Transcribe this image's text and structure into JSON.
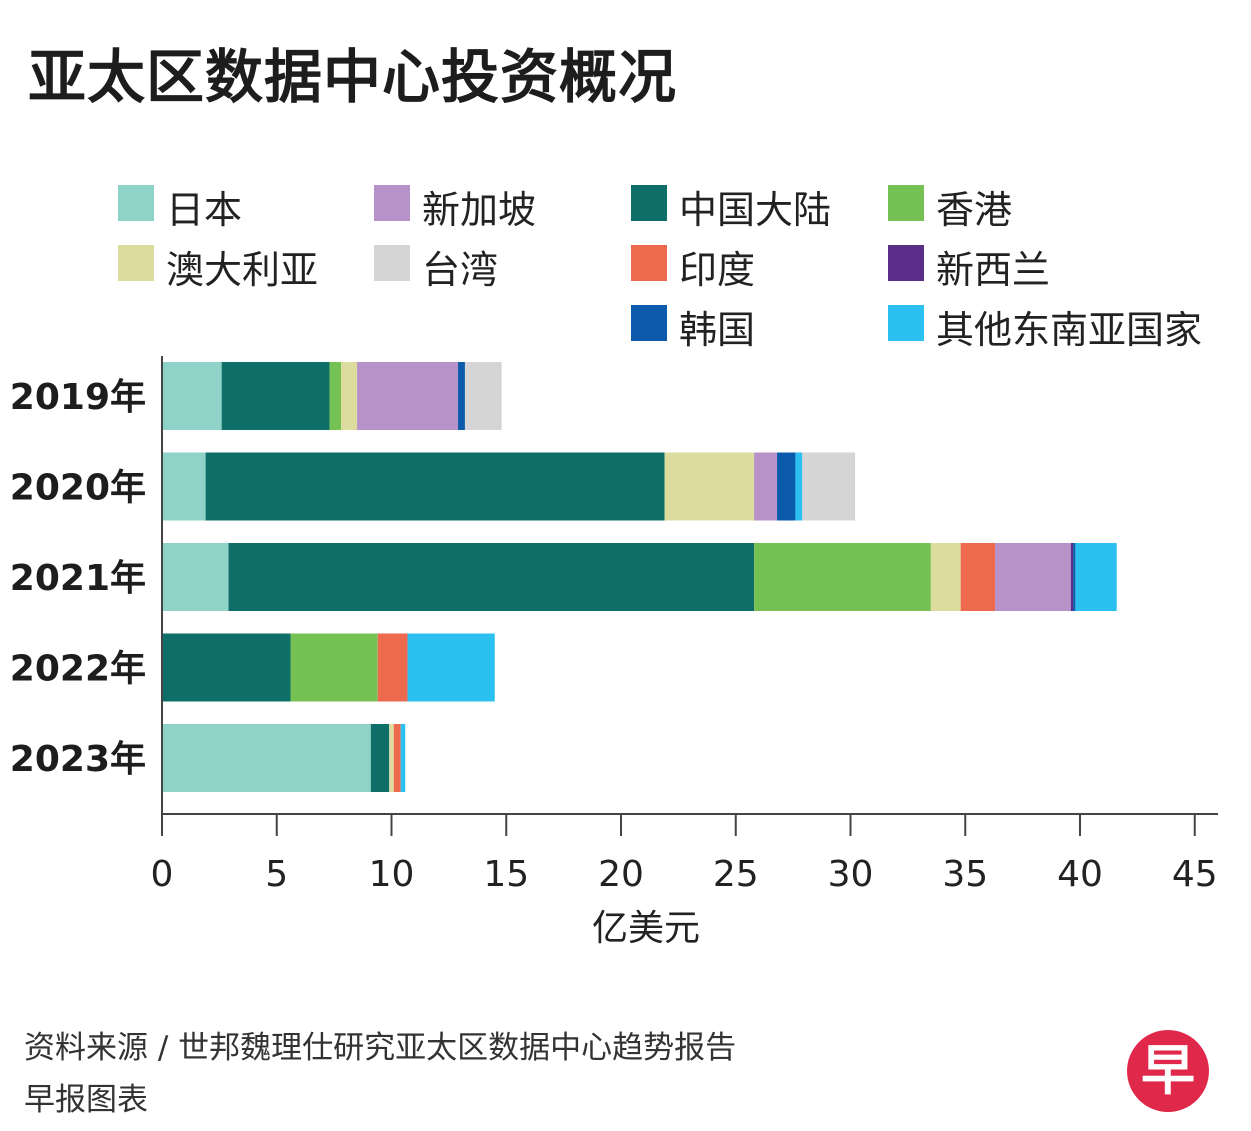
{
  "title": "亚太区数据中心投资概况",
  "legend": [
    {
      "label": "日本",
      "color": "#8fd3c8"
    },
    {
      "label": "新加坡",
      "color": "#b692c8"
    },
    {
      "label": "中国大陆",
      "color": "#0e6f68"
    },
    {
      "label": "香港",
      "color": "#76c154"
    },
    {
      "label": "澳大利亚",
      "color": "#dcdc9e"
    },
    {
      "label": "台湾",
      "color": "#d5d5d5"
    },
    {
      "label": "印度",
      "color": "#ee6a4e"
    },
    {
      "label": "新西兰",
      "color": "#5a2e88"
    },
    {
      "label": "韩国",
      "color": "#0b5aab"
    },
    {
      "label": "其他东南亚国家",
      "color": "#2cc0f0"
    }
  ],
  "chart_data": {
    "type": "bar",
    "orientation": "horizontal",
    "stacked": true,
    "categories": [
      "2019年",
      "2020年",
      "2021年",
      "2022年",
      "2023年"
    ],
    "series": [
      {
        "name": "日本",
        "color": "#8fd3c8",
        "values": [
          2.6,
          1.9,
          2.9,
          0,
          9.1
        ]
      },
      {
        "name": "中国大陆",
        "color": "#0e6f68",
        "values": [
          4.7,
          20.0,
          22.9,
          5.6,
          0.8
        ]
      },
      {
        "name": "香港",
        "color": "#76c154",
        "values": [
          0.5,
          0,
          7.7,
          3.8,
          0
        ]
      },
      {
        "name": "澳大利亚",
        "color": "#dcdc9e",
        "values": [
          0.7,
          3.9,
          1.3,
          0,
          0.2
        ]
      },
      {
        "name": "印度",
        "color": "#ee6a4e",
        "values": [
          0,
          0,
          1.5,
          1.3,
          0.3
        ]
      },
      {
        "name": "新加坡",
        "color": "#b692c8",
        "values": [
          4.4,
          1.0,
          3.3,
          0,
          0
        ]
      },
      {
        "name": "新西兰",
        "color": "#5a2e88",
        "values": [
          0,
          0,
          0.1,
          0,
          0
        ]
      },
      {
        "name": "韩国",
        "color": "#0b5aab",
        "values": [
          0.3,
          0.8,
          0.1,
          0,
          0
        ]
      },
      {
        "name": "其他东南亚国家",
        "color": "#2cc0f0",
        "values": [
          0,
          0.3,
          1.8,
          3.8,
          0.2
        ]
      },
      {
        "name": "台湾",
        "color": "#d5d5d5",
        "values": [
          1.6,
          2.3,
          0,
          0,
          0
        ]
      }
    ],
    "xlim": [
      0,
      46
    ],
    "xticks": [
      0,
      5,
      10,
      15,
      20,
      25,
      30,
      35,
      40,
      45
    ],
    "xlabel": "亿美元",
    "ylabel": "",
    "grid": false,
    "legend_position": "top"
  },
  "source": "资料来源 / 世邦魏理仕研究亚太区数据中心趋势报告",
  "credit": "早报图表",
  "logo_text": "早"
}
